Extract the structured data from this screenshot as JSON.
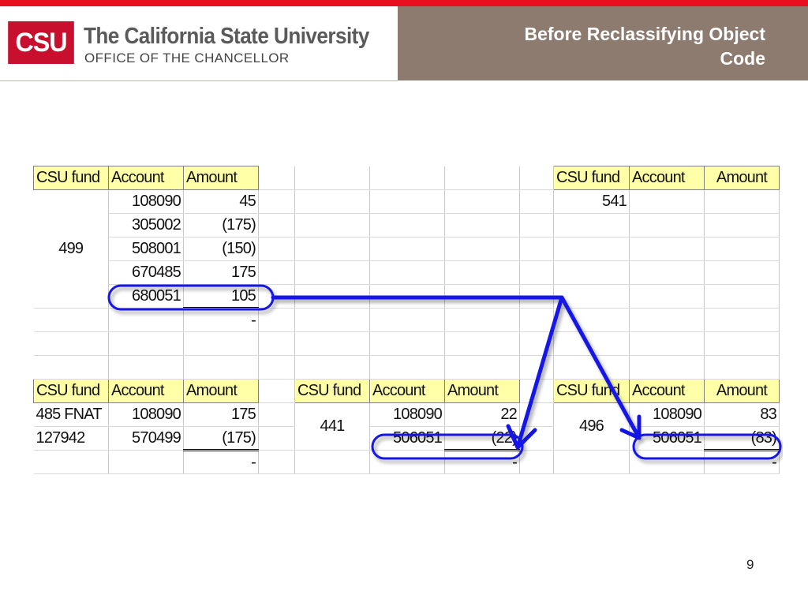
{
  "header": {
    "logo_mark": "CSU",
    "org_name": "The California State University",
    "org_sub": "OFFICE OF THE CHANCELLOR",
    "slide_title": "Before Reclassifying  Object\nCode"
  },
  "colors": {
    "top_bar": "#e8101f",
    "title_band": "#8c7b6e",
    "header_cell": "#ffffa8",
    "annotation": "#1414e6"
  },
  "columns": {
    "fund": "CSU fund",
    "account": "Account",
    "amount": "Amount"
  },
  "fund499": {
    "fund": "499",
    "rows": [
      {
        "account": "108090",
        "amount": "45"
      },
      {
        "account": "305002",
        "amount": "(175)"
      },
      {
        "account": "508001",
        "amount": "(150)"
      },
      {
        "account": "670485",
        "amount": "175"
      },
      {
        "account": "680051",
        "amount": "105"
      }
    ],
    "total": "-"
  },
  "fund541": {
    "fund": "541"
  },
  "fund485": {
    "fund_line1": "485 FNAT",
    "fund_line2": "127942",
    "rows": [
      {
        "account": "108090",
        "amount": "175"
      },
      {
        "account": "570499",
        "amount": "(175)"
      }
    ],
    "total": "-"
  },
  "fund441": {
    "fund": "441",
    "rows": [
      {
        "account": "108090",
        "amount": "22"
      },
      {
        "account": "506051",
        "amount": "(22)"
      }
    ],
    "total": "-"
  },
  "fund496": {
    "fund": "496",
    "rows": [
      {
        "account": "108090",
        "amount": "83"
      },
      {
        "account": "506051",
        "amount": "(83)"
      }
    ],
    "total": "-"
  },
  "page_number": "9"
}
